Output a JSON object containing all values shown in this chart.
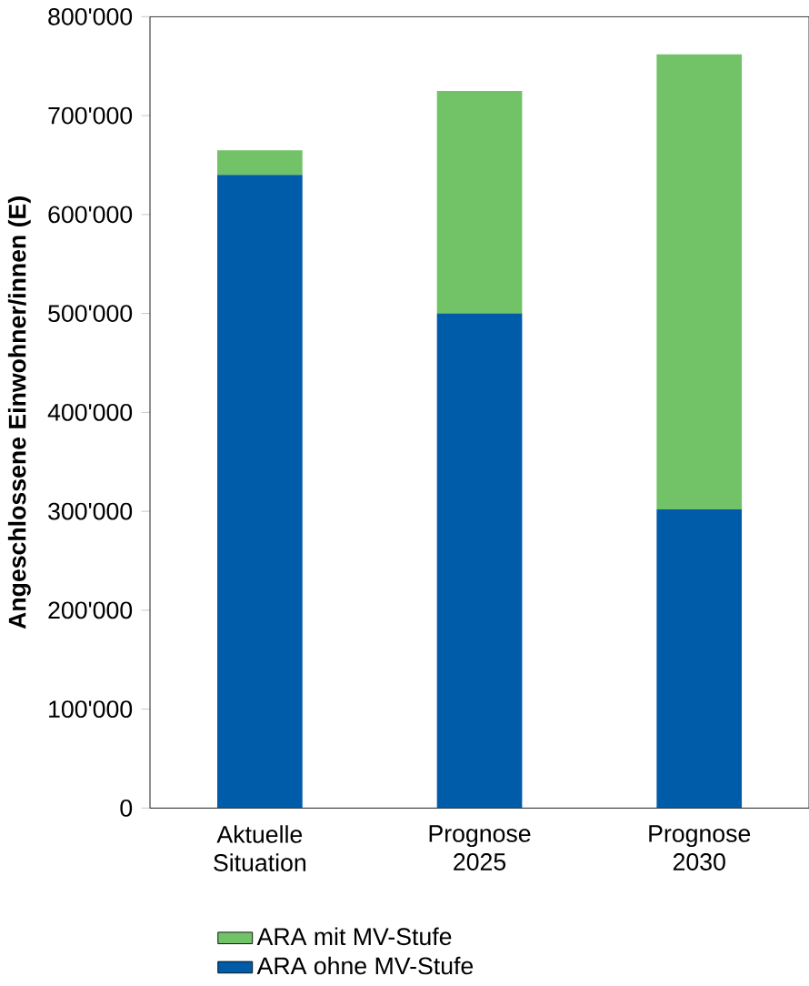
{
  "chart_data": {
    "type": "bar",
    "stacked": true,
    "ylabel": "Angeschlossene Einwohner/innen (E)",
    "categories": [
      "Aktuelle Situation",
      "Prognose 2025",
      "Prognose 2030"
    ],
    "series": [
      {
        "name": "ARA ohne MV-Stufe",
        "color": "#005ca9",
        "values": [
          640000,
          500000,
          302000
        ]
      },
      {
        "name": "ARA mit MV-Stufe",
        "color": "#72c267",
        "values": [
          25000,
          225000,
          460000
        ]
      }
    ],
    "ylim": [
      0,
      800000
    ],
    "yticks": [
      {
        "value": 0,
        "label": "0"
      },
      {
        "value": 100000,
        "label": "100'000"
      },
      {
        "value": 200000,
        "label": "200'000"
      },
      {
        "value": 300000,
        "label": "300'000"
      },
      {
        "value": 400000,
        "label": "400'000"
      },
      {
        "value": 500000,
        "label": "500'000"
      },
      {
        "value": 600000,
        "label": "600'000"
      },
      {
        "value": 700000,
        "label": "700'000"
      },
      {
        "value": 800000,
        "label": "800'000"
      }
    ],
    "grid": false,
    "legend": "bottom"
  }
}
